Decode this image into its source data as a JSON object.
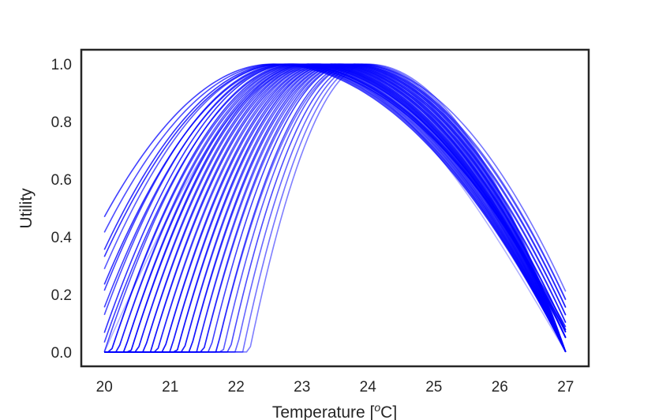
{
  "chart_data": {
    "type": "line",
    "title": "",
    "xlabel": "Temperature [",
    "xlabel_superscript": "o",
    "xlabel_suffix": "C]",
    "ylabel": "Utility",
    "xlim": [
      19.65,
      27.35
    ],
    "ylim": [
      -0.05,
      1.05
    ],
    "xticks": [
      20,
      21,
      22,
      23,
      24,
      25,
      26,
      27
    ],
    "yticks": [
      0.0,
      0.2,
      0.4,
      0.6,
      0.8,
      1.0
    ],
    "xtick_labels": [
      "20",
      "21",
      "22",
      "23",
      "24",
      "25",
      "26",
      "27"
    ],
    "ytick_labels": [
      "0.0",
      "0.2",
      "0.4",
      "0.6",
      "0.8",
      "1.0"
    ],
    "grid": false,
    "legend": "none",
    "line_color": "#0000ff",
    "frame_color": "#262626",
    "x_domain": [
      20,
      27
    ],
    "curve_peaks": [
      22.55,
      22.6,
      22.65,
      22.7,
      22.75,
      22.8,
      22.85,
      22.9,
      22.95,
      23.0,
      23.05,
      23.1,
      23.15,
      23.2,
      23.25,
      23.3,
      23.35,
      23.4,
      23.45,
      23.5,
      23.55,
      23.6,
      23.65,
      23.7,
      23.75,
      23.8,
      23.85,
      23.9,
      23.95,
      24.0,
      22.7,
      22.85,
      23.0,
      23.1,
      23.2,
      23.3,
      23.4,
      23.5,
      23.6,
      23.7,
      23.8,
      22.8,
      22.95,
      23.05,
      23.15,
      23.25,
      23.35,
      23.45,
      23.55,
      23.65
    ],
    "curve_widths_left": [
      3.5,
      3.4,
      3.3,
      3.2,
      3.1,
      3.0,
      2.95,
      2.9,
      2.85,
      2.8,
      2.75,
      2.7,
      2.65,
      2.6,
      2.55,
      2.5,
      2.45,
      2.4,
      2.35,
      2.3,
      2.25,
      2.2,
      2.15,
      2.1,
      2.05,
      2.0,
      1.95,
      1.9,
      1.85,
      1.8,
      3.3,
      3.1,
      2.9,
      2.8,
      2.7,
      2.6,
      2.5,
      2.4,
      2.3,
      2.2,
      2.1,
      3.2,
      3.0,
      2.85,
      2.75,
      2.65,
      2.55,
      2.45,
      2.35,
      2.25
    ],
    "curve_widths_right": [
      4.45,
      4.4,
      4.35,
      4.3,
      4.25,
      4.2,
      4.15,
      4.1,
      4.05,
      4.0,
      3.95,
      3.9,
      3.85,
      3.8,
      3.75,
      3.7,
      3.65,
      3.6,
      3.55,
      3.5,
      3.45,
      3.4,
      3.35,
      3.3,
      3.25,
      3.2,
      3.15,
      3.1,
      3.05,
      3.0,
      4.5,
      4.3,
      4.1,
      4.0,
      3.9,
      3.85,
      3.8,
      3.75,
      3.7,
      3.65,
      3.6,
      4.35,
      4.2,
      4.05,
      3.95,
      3.9,
      3.85,
      3.8,
      3.75,
      3.7
    ],
    "curve_opacity": [
      0.75,
      0.7,
      0.8,
      0.65,
      0.75,
      0.7,
      0.8,
      0.7,
      0.75,
      0.65,
      0.7,
      0.8,
      0.7,
      0.75,
      0.7,
      0.65,
      0.75,
      0.7,
      0.8,
      0.7,
      0.75,
      0.65,
      0.7,
      0.75,
      0.7,
      0.65,
      0.7,
      0.6,
      0.55,
      0.5,
      0.8,
      0.75,
      0.7,
      0.8,
      0.7,
      0.75,
      0.7,
      0.65,
      0.7,
      0.6,
      0.55,
      0.8,
      0.75,
      0.7,
      0.75,
      0.7,
      0.65,
      0.7,
      0.65,
      0.6
    ],
    "outlier_curve": {
      "peak": 23.05,
      "peak_value": 0.98,
      "start_value": 0.0,
      "end_value": 0.0,
      "opacity": 0.3
    }
  }
}
